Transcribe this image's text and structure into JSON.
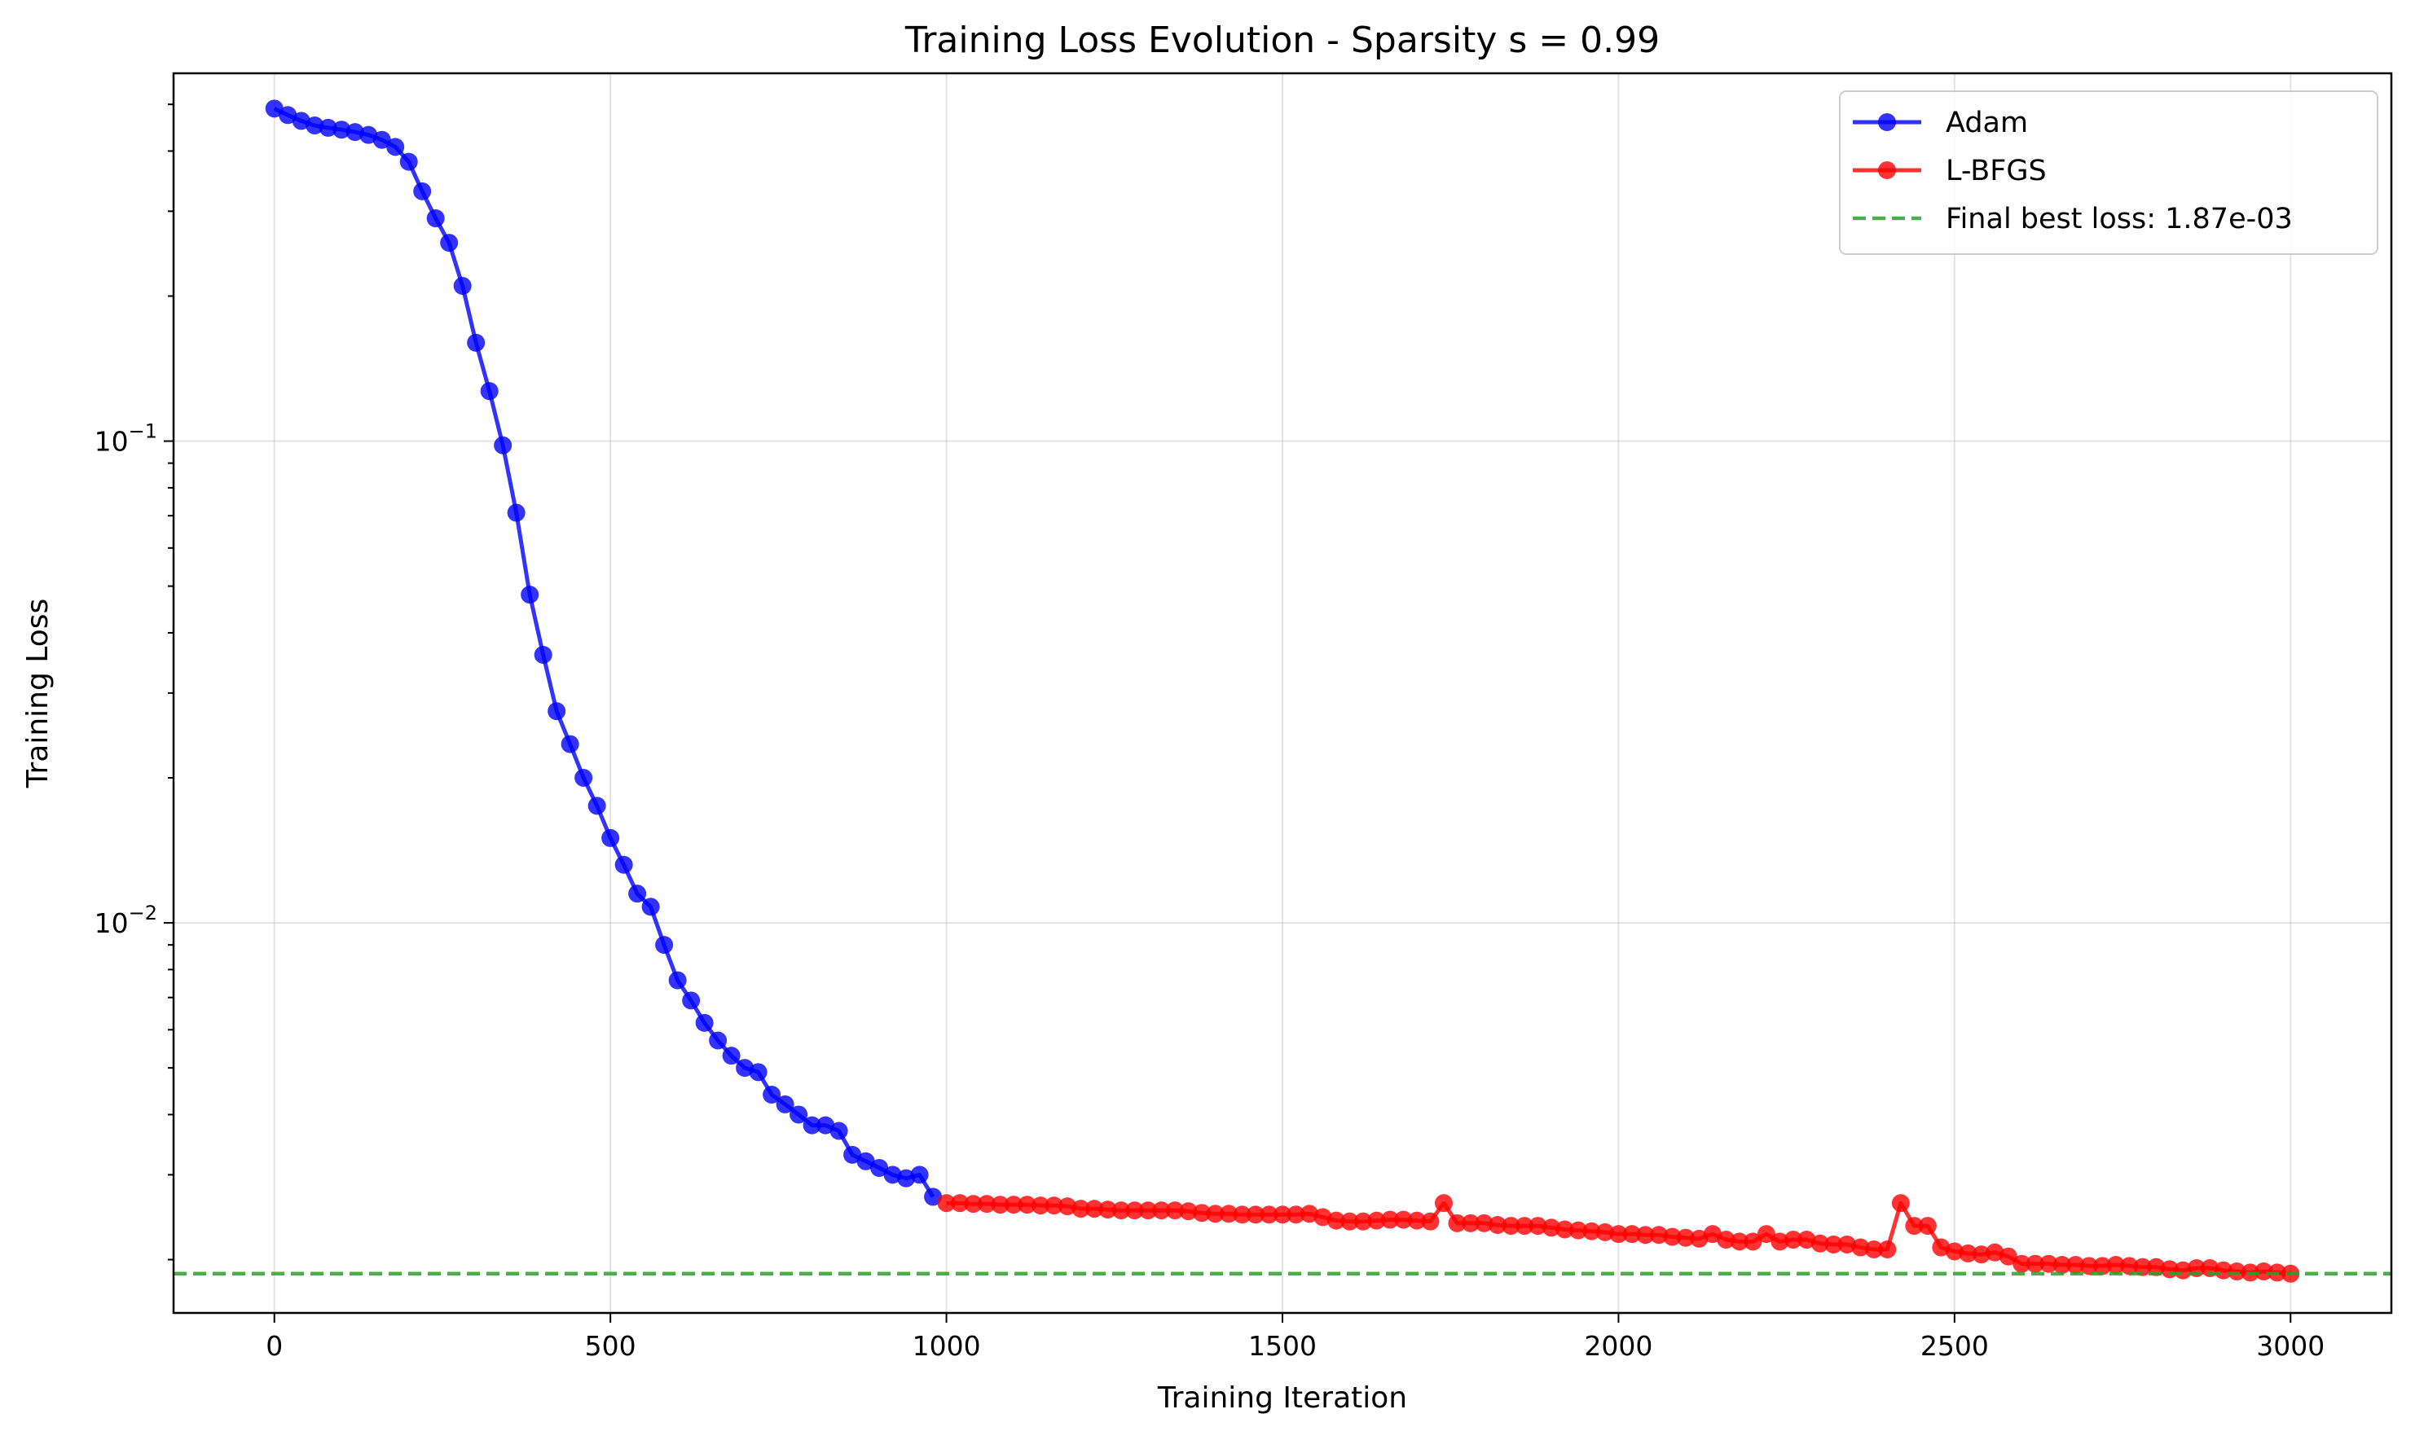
{
  "chart_data": {
    "type": "line",
    "title": "Training Loss Evolution - Sparsity s = 0.99",
    "xlabel": "Training Iteration",
    "ylabel": "Training Loss",
    "yscale": "log",
    "xlim": [
      -150,
      3150
    ],
    "ylim": [
      0.00155,
      0.58
    ],
    "grid": true,
    "legend_position": "top-right",
    "x_ticks": [
      0,
      500,
      1000,
      1500,
      2000,
      2500,
      3000
    ],
    "x_tick_labels": [
      "0",
      "500",
      "1000",
      "1500",
      "2000",
      "2500",
      "3000"
    ],
    "y_ticks": [
      0.1,
      0.01
    ],
    "y_tick_labels": [
      {
        "base": "10",
        "exp": "−1"
      },
      {
        "base": "10",
        "exp": "−2"
      }
    ],
    "series": [
      {
        "name": "Adam",
        "color": "#0000ff",
        "x": [
          0,
          20,
          40,
          60,
          80,
          100,
          120,
          140,
          160,
          180,
          200,
          220,
          240,
          260,
          280,
          300,
          320,
          340,
          360,
          380,
          400,
          420,
          440,
          460,
          480,
          500,
          520,
          540,
          560,
          580,
          600,
          620,
          640,
          660,
          680,
          700,
          720,
          740,
          760,
          780,
          800,
          820,
          840,
          860,
          880,
          900,
          920,
          940,
          960,
          980
        ],
        "y": [
          0.49,
          0.475,
          0.462,
          0.452,
          0.447,
          0.443,
          0.438,
          0.432,
          0.422,
          0.408,
          0.38,
          0.33,
          0.29,
          0.258,
          0.21,
          0.16,
          0.127,
          0.098,
          0.071,
          0.048,
          0.036,
          0.0275,
          0.0235,
          0.02,
          0.0175,
          0.015,
          0.0132,
          0.0115,
          0.0108,
          0.009,
          0.0076,
          0.0069,
          0.0062,
          0.0057,
          0.0053,
          0.005,
          0.0049,
          0.0044,
          0.0042,
          0.004,
          0.0038,
          0.0038,
          0.0037,
          0.0033,
          0.0032,
          0.0031,
          0.003,
          0.00295,
          0.003,
          0.0027
        ]
      },
      {
        "name": "L-BFGS",
        "color": "#ff0000",
        "x": [
          1000,
          1020,
          1040,
          1060,
          1080,
          1100,
          1120,
          1140,
          1160,
          1180,
          1200,
          1220,
          1240,
          1260,
          1280,
          1300,
          1320,
          1340,
          1360,
          1380,
          1400,
          1420,
          1440,
          1460,
          1480,
          1500,
          1520,
          1540,
          1560,
          1580,
          1600,
          1620,
          1640,
          1660,
          1680,
          1700,
          1720,
          1740,
          1760,
          1780,
          1800,
          1820,
          1840,
          1860,
          1880,
          1900,
          1920,
          1940,
          1960,
          1980,
          2000,
          2020,
          2040,
          2060,
          2080,
          2100,
          2120,
          2140,
          2160,
          2180,
          2200,
          2220,
          2240,
          2260,
          2280,
          2300,
          2320,
          2340,
          2360,
          2380,
          2400,
          2420,
          2440,
          2460,
          2480,
          2500,
          2520,
          2540,
          2560,
          2580,
          2600,
          2620,
          2640,
          2660,
          2680,
          2700,
          2720,
          2740,
          2760,
          2780,
          2800,
          2820,
          2840,
          2860,
          2880,
          2900,
          2920,
          2940,
          2960,
          2980,
          3000
        ],
        "y": [
          0.00262,
          0.00262,
          0.00261,
          0.00261,
          0.0026,
          0.0026,
          0.0026,
          0.00259,
          0.00259,
          0.00258,
          0.00255,
          0.00255,
          0.00254,
          0.00253,
          0.00253,
          0.00253,
          0.00253,
          0.00253,
          0.00252,
          0.0025,
          0.00249,
          0.00249,
          0.00248,
          0.00248,
          0.00248,
          0.00248,
          0.00248,
          0.00249,
          0.00245,
          0.00241,
          0.0024,
          0.0024,
          0.00241,
          0.00242,
          0.00242,
          0.00241,
          0.0024,
          0.00262,
          0.00238,
          0.00238,
          0.00238,
          0.00236,
          0.00235,
          0.00235,
          0.00235,
          0.00233,
          0.00231,
          0.0023,
          0.00229,
          0.00228,
          0.00226,
          0.00226,
          0.00225,
          0.00225,
          0.00223,
          0.00222,
          0.00221,
          0.00226,
          0.0022,
          0.00218,
          0.00218,
          0.00226,
          0.00218,
          0.0022,
          0.0022,
          0.00216,
          0.00215,
          0.00215,
          0.00212,
          0.0021,
          0.0021,
          0.00262,
          0.00235,
          0.00235,
          0.00212,
          0.00208,
          0.00206,
          0.00205,
          0.00207,
          0.00203,
          0.00196,
          0.00196,
          0.00196,
          0.00195,
          0.00195,
          0.00194,
          0.00194,
          0.00195,
          0.00194,
          0.00193,
          0.00193,
          0.00191,
          0.0019,
          0.00192,
          0.00192,
          0.0019,
          0.00189,
          0.00188,
          0.00189,
          0.00188,
          0.00187
        ]
      },
      {
        "name": "Final best loss: 1.87e-03",
        "color": "#2ca02c",
        "style": "dashed",
        "y_constant": 0.00187
      }
    ]
  }
}
